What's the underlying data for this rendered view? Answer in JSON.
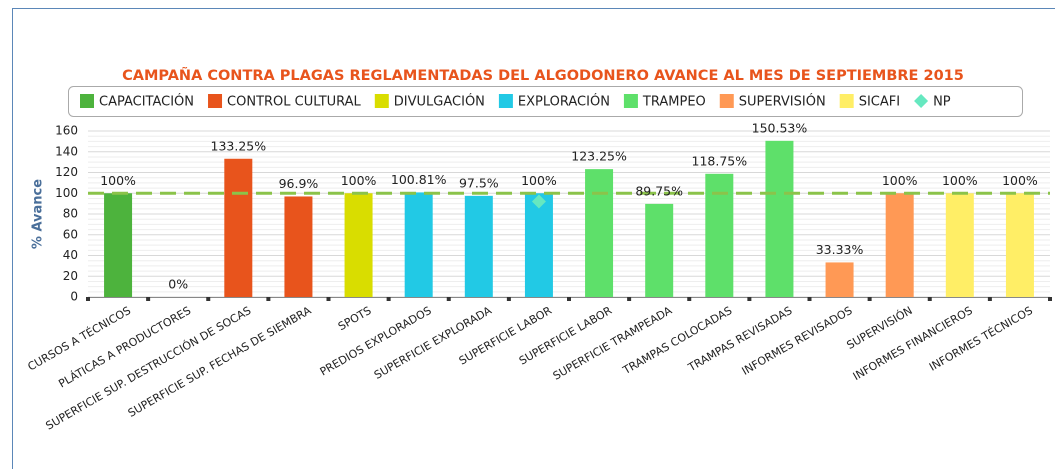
{
  "chart_data": {
    "type": "bar",
    "title": "CAMPAÑA CONTRA PLAGAS REGLAMENTADAS DEL ALGODONERO AVANCE AL MES DE SEPTIEMBRE 2015",
    "y_label": "% Avance",
    "categories": [
      "CURSOS A TÉCNICOS",
      "PLÁTICAS A PRODUCTORES",
      "SUPERFICIE SUP. DESTRUCCIÓN DE SOCAS",
      "SUPERFICIE SUP. FECHAS DE SIEMBRA",
      "SPOTS",
      "PREDIOS EXPLORADOS",
      "SUPERFICIE EXPLORADA",
      "SUPERFICIE LABOR",
      "SUPERFICIE LABOR",
      "SUPERFICIE TRAMPEADA",
      "TRAMPAS COLOCADAS",
      "TRAMPAS REVISADAS",
      "INFORMES REVISADOS",
      "SUPERVISIÓN",
      "INFORMES FINANCIEROS",
      "INFORMES TÉCNICOS"
    ],
    "series": [
      {
        "name": "CAPACITACIÓN",
        "color": "#4db33d",
        "values": [
          100,
          0,
          null,
          null,
          null,
          null,
          null,
          null,
          null,
          null,
          null,
          null,
          null,
          null,
          null,
          null
        ],
        "value_labels": [
          "100%",
          "0%",
          null,
          null,
          null,
          null,
          null,
          null,
          null,
          null,
          null,
          null,
          null,
          null,
          null,
          null
        ]
      },
      {
        "name": "CONTROL CULTURAL",
        "color": "#e8541c",
        "values": [
          null,
          null,
          133.25,
          96.9,
          null,
          null,
          null,
          null,
          null,
          null,
          null,
          null,
          null,
          null,
          null,
          null
        ],
        "value_labels": [
          null,
          null,
          "133.25%",
          "96.9%",
          null,
          null,
          null,
          null,
          null,
          null,
          null,
          null,
          null,
          null,
          null,
          null
        ]
      },
      {
        "name": "DIVULGACIÓN",
        "color": "#d9dd00",
        "values": [
          null,
          null,
          null,
          null,
          100,
          null,
          null,
          null,
          null,
          null,
          null,
          null,
          null,
          null,
          null,
          null
        ],
        "value_labels": [
          null,
          null,
          null,
          null,
          "100%",
          null,
          null,
          null,
          null,
          null,
          null,
          null,
          null,
          null,
          null,
          null
        ]
      },
      {
        "name": "EXPLORACIÓN",
        "color": "#22c9e5",
        "values": [
          null,
          null,
          null,
          null,
          null,
          100.81,
          97.5,
          100,
          null,
          null,
          null,
          null,
          null,
          null,
          null,
          null
        ],
        "value_labels": [
          null,
          null,
          null,
          null,
          null,
          "100.81%",
          "97.5%",
          "100%",
          null,
          null,
          null,
          null,
          null,
          null,
          null,
          null
        ]
      },
      {
        "name": "TRAMPEO",
        "color": "#5ee06a",
        "values": [
          null,
          null,
          null,
          null,
          null,
          null,
          null,
          null,
          123.25,
          89.75,
          118.75,
          150.53,
          null,
          null,
          null,
          null
        ],
        "value_labels": [
          null,
          null,
          null,
          null,
          null,
          null,
          null,
          null,
          "123.25%",
          "89.75%",
          "118.75%",
          "150.53%",
          null,
          null,
          null,
          null
        ]
      },
      {
        "name": "SUPERVISIÓN",
        "color": "#ff9955",
        "values": [
          null,
          null,
          null,
          null,
          null,
          null,
          null,
          null,
          null,
          null,
          null,
          null,
          33.33,
          100,
          null,
          null
        ],
        "value_labels": [
          null,
          null,
          null,
          null,
          null,
          null,
          null,
          null,
          null,
          null,
          null,
          null,
          "33.33%",
          "100%",
          null,
          null
        ]
      },
      {
        "name": "SICAFI",
        "color": "#ffee66",
        "values": [
          null,
          null,
          null,
          null,
          null,
          null,
          null,
          null,
          null,
          null,
          null,
          null,
          null,
          null,
          100,
          100
        ],
        "value_labels": [
          null,
          null,
          null,
          null,
          null,
          null,
          null,
          null,
          null,
          null,
          null,
          null,
          null,
          null,
          "100%",
          "100%"
        ]
      },
      {
        "name": "NP",
        "color": "#66e8c0",
        "type": "scatter",
        "values": [
          null,
          null,
          null,
          null,
          null,
          null,
          null,
          92,
          null,
          null,
          null,
          null,
          null,
          null,
          null,
          null
        ]
      }
    ],
    "reference_line": {
      "value": 100,
      "color": "#8bc34a"
    },
    "ylim": [
      0,
      160
    ],
    "yticks": [
      0,
      20,
      40,
      60,
      80,
      100,
      120,
      140,
      160
    ],
    "grid": true
  }
}
